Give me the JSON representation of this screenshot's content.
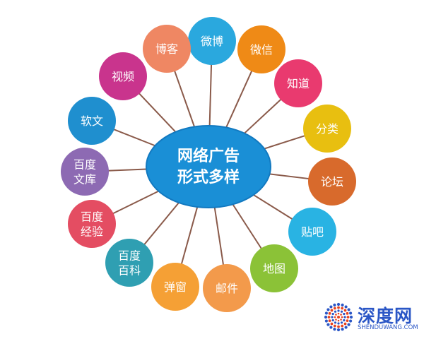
{
  "diagram": {
    "center": {
      "lines": [
        "网络广告",
        "形式多样"
      ],
      "color": "#1a8fd6",
      "edge_color": "#1279c0"
    },
    "spoke_color": "#8a5a4a",
    "nodes": [
      {
        "lines": [
          "微博"
        ],
        "color": "#2aa8de",
        "icon": "bubble"
      },
      {
        "lines": [
          "微信"
        ],
        "color": "#ef8a16",
        "icon": "bubble"
      },
      {
        "lines": [
          "知道"
        ],
        "color": "#e93a6f",
        "icon": "bubble"
      },
      {
        "lines": [
          "分类"
        ],
        "color": "#e8bf10",
        "icon": "bubble"
      },
      {
        "lines": [
          "论坛"
        ],
        "color": "#d86a2c",
        "icon": "bubble"
      },
      {
        "lines": [
          "贴吧"
        ],
        "color": "#29b3e3",
        "icon": "bubble"
      },
      {
        "lines": [
          "地图"
        ],
        "color": "#8bc237",
        "icon": "bubble"
      },
      {
        "lines": [
          "邮件"
        ],
        "color": "#f39a4b",
        "icon": "bubble"
      },
      {
        "lines": [
          "弹窗"
        ],
        "color": "#f5a035",
        "icon": "bubble"
      },
      {
        "lines": [
          "百度",
          "百科"
        ],
        "color": "#2f9fb2",
        "icon": "bubble"
      },
      {
        "lines": [
          "百度",
          "经验"
        ],
        "color": "#e44d62",
        "icon": "bubble"
      },
      {
        "lines": [
          "百度",
          "文库"
        ],
        "color": "#8d6ab3",
        "icon": "bubble"
      },
      {
        "lines": [
          "软文"
        ],
        "color": "#1f8fcf",
        "icon": "bubble"
      },
      {
        "lines": [
          "视频"
        ],
        "color": "#c9348d",
        "icon": "bubble"
      },
      {
        "lines": [
          "博客"
        ],
        "color": "#ef8763",
        "icon": "bubble"
      }
    ]
  },
  "logo": {
    "name": "深度网",
    "url": "SHENDUWANG.COM",
    "colors": [
      "#e8431f",
      "#2a56c6"
    ],
    "icon": "dotted-sunburst-icon"
  }
}
